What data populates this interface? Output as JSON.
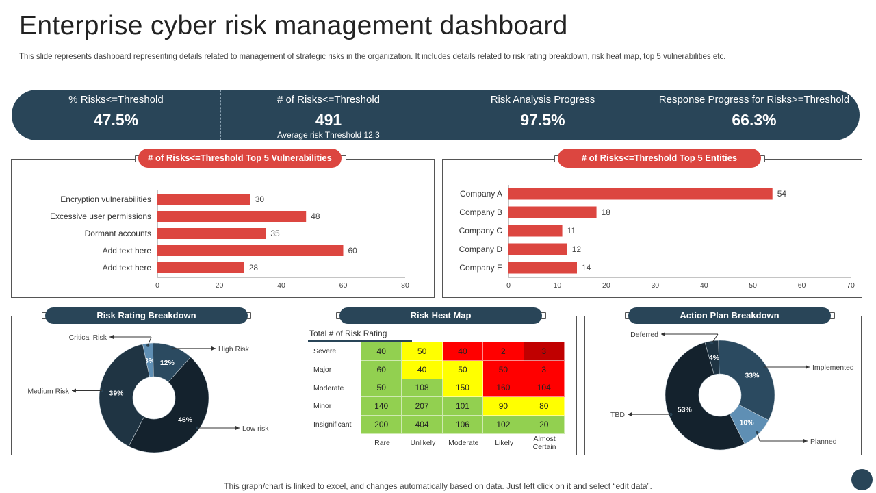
{
  "header": {
    "title": "Enterprise cyber risk management dashboard",
    "subtitle": "This slide represents dashboard representing details related to management of strategic risks in the organization. It includes details related to risk rating breakdown, risk heat map, top 5 vulnerabilities etc."
  },
  "kpis": [
    {
      "label": "% Risks<=Threshold",
      "value": "47.5%"
    },
    {
      "label": "# of Risks<=Threshold",
      "value": "491",
      "sub": "Average risk Threshold 12.3"
    },
    {
      "label": "Risk Analysis Progress",
      "value": "97.5%"
    },
    {
      "label": "Response Progress for Risks>=Threshold",
      "value": "66.3%"
    }
  ],
  "colors": {
    "navy": "#294558",
    "red": "#dc4640",
    "dark": "#14222d",
    "light_blue": "#5f8fb4"
  },
  "chart_data": [
    {
      "type": "bar",
      "orientation": "horizontal",
      "title": "# of Risks<=Threshold  Top 5 Vulnerabilities",
      "categories": [
        "Encryption vulnerabilities",
        "Excessive user permissions",
        "Dormant accounts",
        "Add text here",
        "Add text here"
      ],
      "values": [
        30,
        48,
        35,
        60,
        28
      ],
      "xlim": [
        0,
        80
      ],
      "xticks": [
        "0",
        "20",
        "40",
        "60",
        "80"
      ]
    },
    {
      "type": "bar",
      "orientation": "horizontal",
      "title": "# of Risks<=Threshold Top 5 Entities",
      "categories": [
        "Company A",
        "Company B",
        "Company C",
        "Company D",
        "Company E"
      ],
      "values": [
        54,
        18,
        11,
        12,
        14
      ],
      "xlim": [
        0,
        70
      ],
      "xticks": [
        "0",
        "10",
        "20",
        "30",
        "40",
        "50",
        "60",
        "70"
      ]
    },
    {
      "type": "pie",
      "donut": true,
      "title": "Risk Rating Breakdown",
      "slices": [
        {
          "label": "Critical Risk",
          "value": 3,
          "display": "3%",
          "color": "#5f8fb4"
        },
        {
          "label": "High Risk",
          "value": 12,
          "display": "12%",
          "color": "#2b4a60"
        },
        {
          "label": "Low risk",
          "value": 46,
          "display": "46%",
          "color": "#14222d"
        },
        {
          "label": "Medium Risk",
          "value": 39,
          "display": "39%",
          "color": "#1f3443"
        }
      ]
    },
    {
      "type": "heatmap",
      "title": "Risk Heat Map",
      "legend_title": "Total # of Risk Rating",
      "rows": [
        "Severe",
        "Major",
        "Moderate",
        "Minor",
        "Insignificant"
      ],
      "cols": [
        "Rare",
        "Unlikely",
        "Moderate",
        "Likely",
        "Almost Certain"
      ],
      "values": [
        [
          40,
          50,
          40,
          2,
          3
        ],
        [
          60,
          40,
          50,
          50,
          3
        ],
        [
          50,
          108,
          150,
          160,
          104
        ],
        [
          140,
          207,
          101,
          90,
          80
        ],
        [
          200,
          404,
          106,
          102,
          20
        ]
      ],
      "cell_colors": [
        [
          "#92d050",
          "#ffff00",
          "#ff0000",
          "#ff0000",
          "#c00000"
        ],
        [
          "#92d050",
          "#ffff00",
          "#ffff00",
          "#ff0000",
          "#ff0000"
        ],
        [
          "#92d050",
          "#92d050",
          "#ffff00",
          "#ff0000",
          "#ff0000"
        ],
        [
          "#92d050",
          "#92d050",
          "#92d050",
          "#ffff00",
          "#ffff00"
        ],
        [
          "#92d050",
          "#92d050",
          "#92d050",
          "#92d050",
          "#92d050"
        ]
      ]
    },
    {
      "type": "pie",
      "donut": true,
      "title": "Action Plan Breakdown",
      "slices": [
        {
          "label": "Deferred",
          "value": 4,
          "display": "4%",
          "color": "#1f3443"
        },
        {
          "label": "Implemented",
          "value": 33,
          "display": "33%",
          "color": "#2b4a60"
        },
        {
          "label": "Planned",
          "value": 10,
          "display": "10%",
          "color": "#5f8fb4"
        },
        {
          "label": "TBD",
          "value": 53,
          "display": "53%",
          "color": "#14222d"
        }
      ]
    }
  ],
  "footer": {
    "note": "This graph/chart is linked to excel,  and changes automatically based on data. Just left click on it and select “edit data”."
  }
}
